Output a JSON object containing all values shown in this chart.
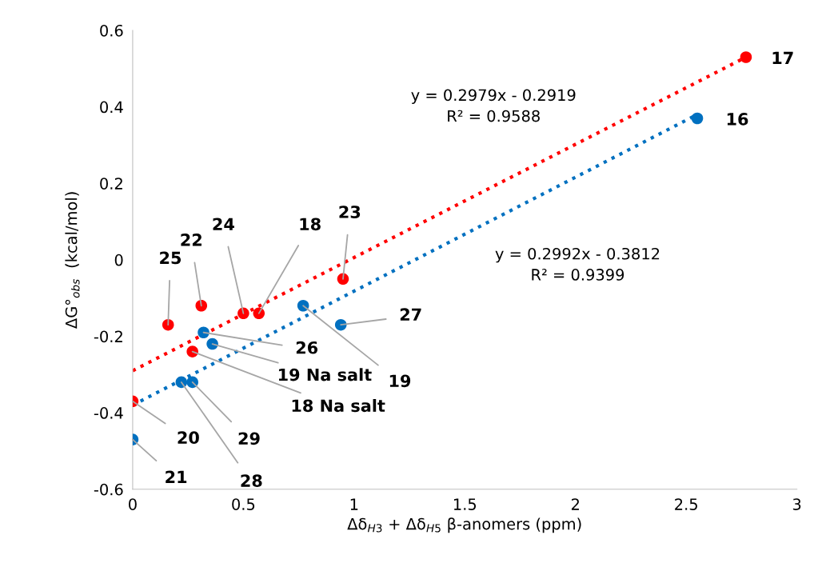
{
  "chart_data": {
    "type": "scatter",
    "xlabel": "Δδ$_{H3}$ + Δδ$_{H5}$ β-anomers (ppm)",
    "ylabel": "ΔG°$_{obs}$  (kcal/mol)",
    "xlim": [
      0,
      3
    ],
    "xticks": [
      0,
      0.5,
      1,
      1.5,
      2,
      2.5,
      3
    ],
    "ylim": [
      -0.6,
      0.6
    ],
    "yticks": [
      -0.6,
      -0.4,
      -0.2,
      0,
      0.2,
      0.4,
      0.6
    ],
    "grid": false,
    "series": [
      {
        "marker": "circle",
        "color": "#ff0000",
        "x": [
          2.77,
          0.95,
          0.57,
          0.5,
          0.31,
          0.16,
          0.27,
          0
        ],
        "values": [
          0.53,
          -0.05,
          -0.14,
          -0.14,
          -0.12,
          -0.17,
          -0.24,
          -0.37
        ]
      },
      {
        "marker": "circle",
        "color": "#0070c0",
        "x": [
          2.55,
          0.77,
          0.94,
          0.32,
          0.36,
          0.27,
          0.22,
          0
        ],
        "values": [
          0.37,
          -0.12,
          -0.17,
          -0.19,
          -0.22,
          -0.32,
          -0.32,
          -0.47
        ]
      },
      {
        "type": "line",
        "line_style": "dotted",
        "color": "#ff0000",
        "x": [
          0,
          2.77
        ],
        "values": [
          -0.29,
          0.53
        ]
      },
      {
        "type": "line",
        "line_style": "dotted",
        "color": "#0070c0",
        "x": [
          0,
          2.55
        ],
        "values": [
          -0.38,
          0.38
        ]
      }
    ],
    "annotations": [
      {
        "text": "17",
        "x": 2.77,
        "y": 0.53
      },
      {
        "text": "23",
        "x": 0.95,
        "y": -0.05
      },
      {
        "text": "18",
        "x": 0.57,
        "y": -0.14
      },
      {
        "text": "24",
        "x": 0.5,
        "y": -0.14
      },
      {
        "text": "22",
        "x": 0.31,
        "y": -0.12
      },
      {
        "text": "25",
        "x": 0.16,
        "y": -0.17
      },
      {
        "text": "18 Na salt",
        "x": 0.27,
        "y": -0.24
      },
      {
        "text": "20",
        "x": 0,
        "y": -0.37
      },
      {
        "text": "16",
        "x": 2.55,
        "y": 0.37
      },
      {
        "text": "19",
        "x": 0.77,
        "y": -0.12
      },
      {
        "text": "27",
        "x": 0.94,
        "y": -0.17
      },
      {
        "text": "26",
        "x": 0.32,
        "y": -0.19
      },
      {
        "text": "19 Na salt",
        "x": 0.36,
        "y": -0.22
      },
      {
        "text": "29",
        "x": 0.27,
        "y": -0.32
      },
      {
        "text": "28",
        "x": 0.22,
        "y": -0.32
      },
      {
        "text": "21",
        "x": 0,
        "y": -0.47
      },
      "y = 0.2979x - 0.2919\nR² = 0.9588",
      "y = 0.2992x - 0.3812\nR² = 0.9399"
    ]
  }
}
